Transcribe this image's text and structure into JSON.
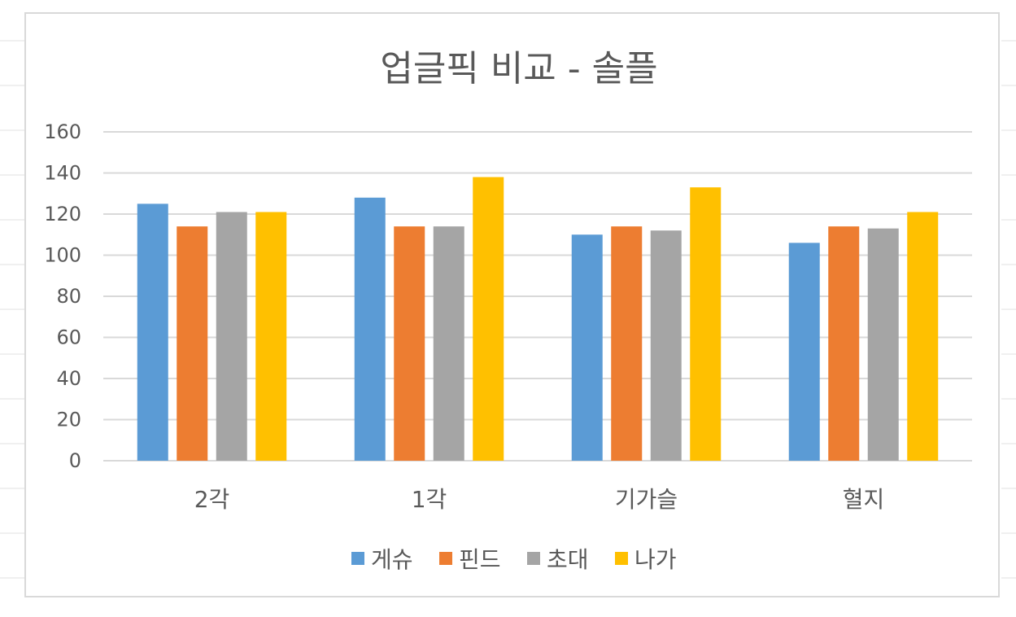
{
  "chart_data": {
    "type": "bar",
    "title": "업글픽 비교 - 솔플",
    "categories": [
      "2각",
      "1각",
      "기가슬",
      "혈지"
    ],
    "series": [
      {
        "name": "게슈",
        "color": "#5b9bd5",
        "values": [
          125,
          128,
          110,
          106
        ]
      },
      {
        "name": "핀드",
        "color": "#ed7d31",
        "values": [
          114,
          114,
          114,
          114
        ]
      },
      {
        "name": "초대",
        "color": "#a5a5a5",
        "values": [
          121,
          114,
          112,
          113
        ]
      },
      {
        "name": "나가",
        "color": "#ffc000",
        "values": [
          121,
          138,
          133,
          121
        ]
      }
    ],
    "ylim": [
      0,
      160
    ],
    "yticks": [
      "0",
      "20",
      "40",
      "60",
      "80",
      "100",
      "120",
      "140",
      "160"
    ],
    "grid": true,
    "legend_position": "bottom"
  }
}
